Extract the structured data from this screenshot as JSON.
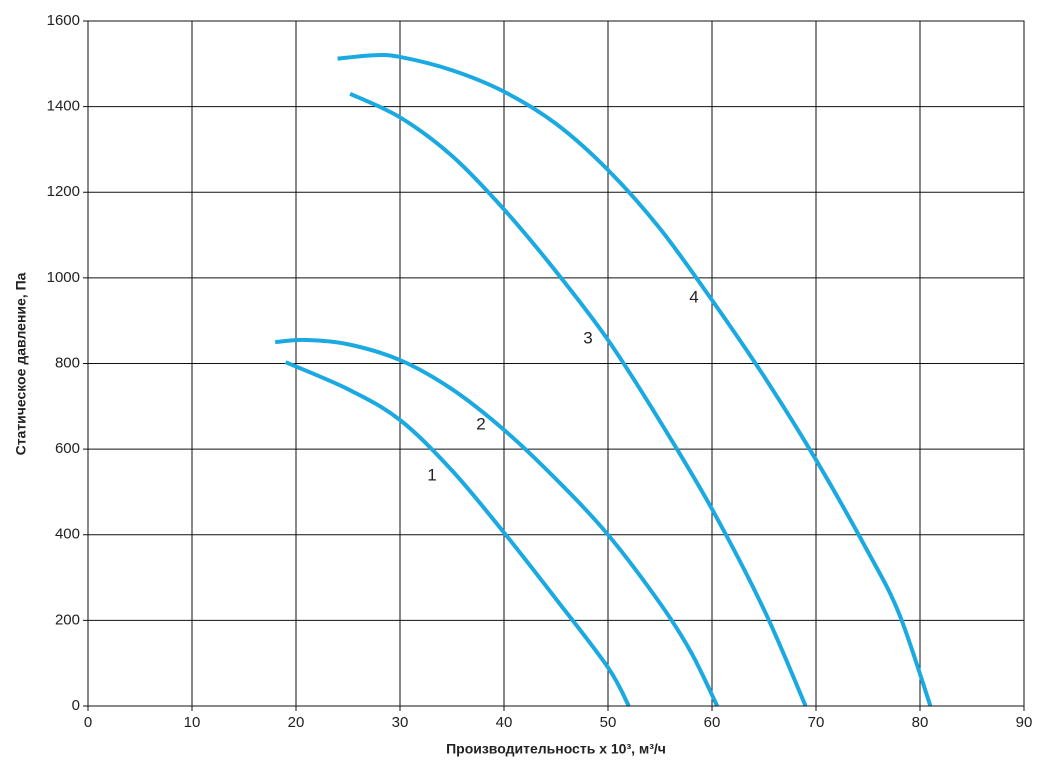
{
  "chart_data": {
    "type": "line",
    "x_label": "Производительность x 10³, м³/ч",
    "y_label": "Статическое давление, Па",
    "xlim": [
      0,
      90
    ],
    "xticks": [
      0,
      10,
      20,
      30,
      40,
      50,
      60,
      70,
      80,
      90
    ],
    "ylim": [
      0,
      1600
    ],
    "yticks": [
      0,
      200,
      400,
      600,
      800,
      1000,
      1200,
      1400,
      1600
    ],
    "grid": true,
    "series": [
      {
        "name": "1",
        "color": "#1ba9e1",
        "x": [
          19,
          25,
          30,
          35,
          40,
          45,
          50,
          52
        ],
        "values": [
          803,
          740,
          668,
          550,
          405,
          250,
          90,
          0
        ]
      },
      {
        "name": "2",
        "color": "#1ba9e1",
        "x": [
          18,
          21,
          25,
          30,
          35,
          40,
          45,
          50,
          55,
          58,
          60.5
        ],
        "values": [
          850,
          855,
          845,
          808,
          740,
          645,
          530,
          400,
          240,
          125,
          0
        ]
      },
      {
        "name": "3",
        "color": "#1ba9e1",
        "x": [
          25.2,
          30,
          35,
          40,
          45,
          50,
          55,
          60,
          65,
          69
        ],
        "values": [
          1430,
          1375,
          1285,
          1160,
          1015,
          855,
          665,
          460,
          225,
          0
        ]
      },
      {
        "name": "4",
        "color": "#1ba9e1",
        "x": [
          24,
          27.5,
          30,
          35,
          40,
          45,
          50,
          55,
          60,
          65,
          70,
          75,
          78,
          81
        ],
        "values": [
          1512,
          1520,
          1516,
          1485,
          1435,
          1360,
          1252,
          1115,
          948,
          770,
          575,
          360,
          215,
          0
        ]
      }
    ]
  }
}
